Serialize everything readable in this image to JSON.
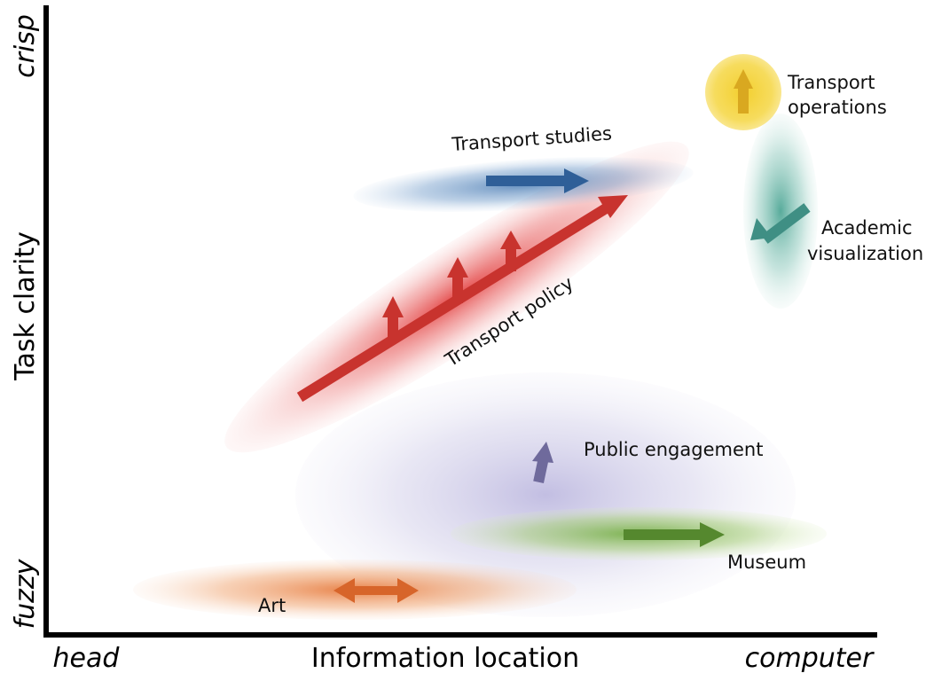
{
  "axes": {
    "x_title": "Information location",
    "x_low": "head",
    "x_high": "computer",
    "y_title": "Task clarity",
    "y_low": "fuzzy",
    "y_high": "crisp"
  },
  "regions": [
    {
      "id": "transport-operations",
      "lines": [
        "Transport",
        "operations"
      ],
      "color": "#f2d23c",
      "arrow_icon": "arrow-up-icon"
    },
    {
      "id": "transport-studies",
      "lines": [
        "Transport studies"
      ],
      "color": "#2f68a8",
      "arrow_icon": "arrow-right-icon"
    },
    {
      "id": "academic-visualization",
      "lines": [
        "Academic",
        "visualization"
      ],
      "color": "#3a9c8c",
      "arrow_icon": "arrow-down-left-icon"
    },
    {
      "id": "transport-policy",
      "lines": [
        "Transport policy"
      ],
      "color": "#d93232",
      "arrow_icon": "arrow-diagonal-up-right-icon"
    },
    {
      "id": "public-engagement",
      "lines": [
        "Public engagement"
      ],
      "color": "#7a74b0",
      "arrow_icon": "arrow-up-icon"
    },
    {
      "id": "museum",
      "lines": [
        "Museum"
      ],
      "color": "#6ea83a",
      "arrow_icon": "arrow-right-icon"
    },
    {
      "id": "art",
      "lines": [
        "Art"
      ],
      "color": "#e0702a",
      "arrow_icon": "arrow-left-right-icon"
    }
  ]
}
